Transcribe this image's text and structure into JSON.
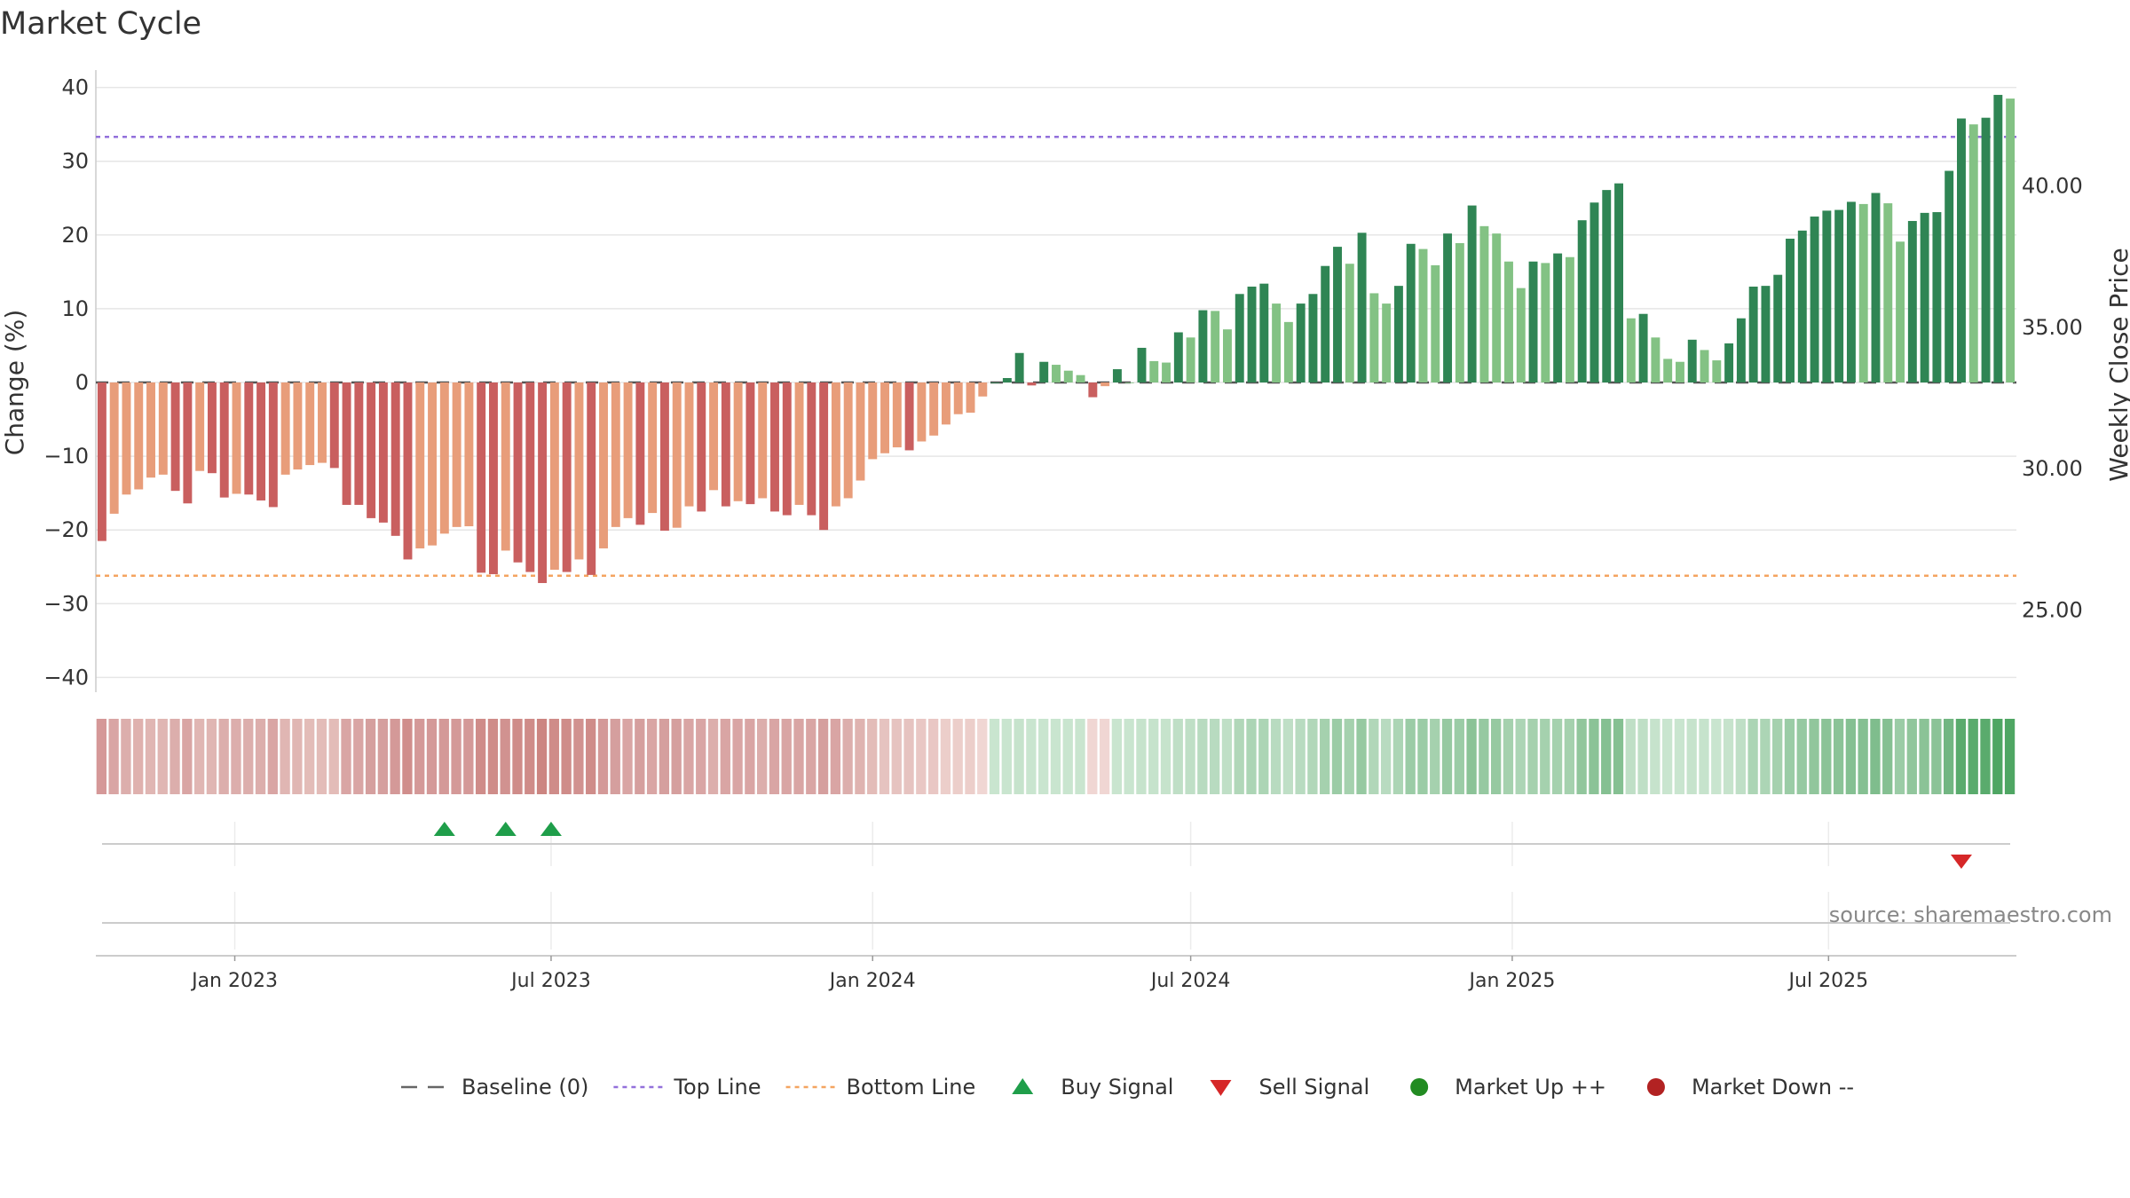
{
  "chart_data": {
    "type": "bar",
    "title": "Market Cycle",
    "ylabel_left": "Change (%)",
    "ylabel_right": "Weekly Close Price",
    "ylim": [
      -42,
      42
    ],
    "yticks": [
      40,
      30,
      20,
      10,
      0,
      -10,
      -20,
      -30,
      -40
    ],
    "right_ylim": [
      22.1,
      44.0
    ],
    "right_ticks": [
      "40.00",
      "35.00",
      "30.00",
      "25.00"
    ],
    "right_tick_values": [
      40,
      35,
      30,
      25
    ],
    "x_start": "2022-10-17",
    "week_days": 7,
    "xticks": [
      {
        "label": "Jan 2023",
        "date": "2023-01-01"
      },
      {
        "label": "Jul 2023",
        "date": "2023-07-01"
      },
      {
        "label": "Jan 2024",
        "date": "2024-01-01"
      },
      {
        "label": "Jul 2024",
        "date": "2024-07-01"
      },
      {
        "label": "Jan 2025",
        "date": "2025-01-01"
      },
      {
        "label": "Jul 2025",
        "date": "2025-07-01"
      }
    ],
    "top_line": 33.3,
    "bottom_line": -26.2,
    "values": [
      -21.5,
      -17.8,
      -15.2,
      -14.5,
      -12.9,
      -12.5,
      -14.7,
      -16.4,
      -12.0,
      -12.3,
      -15.6,
      -15.1,
      -15.2,
      -16.0,
      -16.9,
      -12.5,
      -11.8,
      -11.2,
      -10.9,
      -11.6,
      -16.6,
      -16.6,
      -18.4,
      -19.0,
      -20.8,
      -24.0,
      -22.5,
      -22.1,
      -20.5,
      -19.6,
      -19.5,
      -25.8,
      -26.0,
      -22.8,
      -24.4,
      -25.7,
      -27.2,
      -25.4,
      -25.7,
      -24.0,
      -26.1,
      -22.5,
      -19.6,
      -18.4,
      -19.3,
      -17.7,
      -20.1,
      -19.7,
      -16.8,
      -17.5,
      -14.6,
      -16.8,
      -16.1,
      -16.5,
      -15.7,
      -17.5,
      -18.0,
      -16.6,
      -18.0,
      -20.0,
      -16.8,
      -15.7,
      -13.3,
      -10.4,
      -9.6,
      -8.8,
      -9.2,
      -8.0,
      -7.2,
      -5.7,
      -4.3,
      -4.1,
      -1.9,
      0.0,
      0.6,
      4.0,
      -0.4,
      2.8,
      2.4,
      1.6,
      1.0,
      -2.0,
      -0.5,
      1.8,
      0.0,
      4.7,
      2.9,
      2.7,
      6.8,
      6.1,
      9.8,
      9.7,
      7.2,
      12.0,
      13.0,
      13.4,
      10.7,
      8.2,
      10.7,
      12.0,
      15.8,
      18.4,
      16.1,
      20.3,
      12.1,
      10.7,
      13.1,
      18.8,
      18.1,
      15.9,
      20.2,
      18.9,
      24.0,
      21.2,
      20.2,
      16.4,
      12.8,
      16.4,
      16.2,
      17.5,
      17.0,
      22.0,
      24.4,
      26.1,
      27.0,
      8.7,
      9.3,
      6.1,
      3.2,
      2.8,
      5.8,
      4.4,
      3.0,
      5.3,
      8.7,
      13.0,
      13.1,
      14.6,
      19.5,
      20.6,
      22.5,
      23.3,
      23.4,
      24.5,
      24.2,
      25.7,
      24.3,
      19.1,
      21.9,
      23.0,
      23.1,
      28.7,
      35.8,
      35.0,
      35.9,
      39.0,
      38.5
    ],
    "heat_colors": [
      "#d59898",
      "#d9a5a4",
      "#dcaeac",
      "#dfb1ae",
      "#e0b6b3",
      "#e0b6b3",
      "#dcaeac",
      "#d9a5a4",
      "#e0b6b3",
      "#e0b6b3",
      "#dcaeac",
      "#dcaeac",
      "#dcaeac",
      "#dcaeac",
      "#d9a5a4",
      "#e0b6b3",
      "#e0b6b3",
      "#e3bcb8",
      "#e3bcb8",
      "#e3bcb8",
      "#d9a5a4",
      "#d9a5a4",
      "#d59f9e",
      "#d59f9e",
      "#d49998",
      "#d08e8c",
      "#d49998",
      "#d49998",
      "#d49998",
      "#d49998",
      "#d49998",
      "#cf8c89",
      "#cf8c89",
      "#d19290",
      "#cf8c89",
      "#cf8c89",
      "#cc8581",
      "#cf8c89",
      "#cf8c89",
      "#d19290",
      "#cf8c89",
      "#d49998",
      "#d59f9e",
      "#d9a5a4",
      "#d59f9e",
      "#d9a5a4",
      "#d59f9e",
      "#d59f9e",
      "#d9a5a4",
      "#d9a5a4",
      "#dcaeac",
      "#d9a5a4",
      "#d9a5a4",
      "#d9a5a4",
      "#dcaeac",
      "#d9a5a4",
      "#d9a5a4",
      "#d9a5a4",
      "#d9a5a4",
      "#d59f9e",
      "#d9a5a4",
      "#dcaeac",
      "#dfb3b0",
      "#e3bcb8",
      "#e6c3c0",
      "#e6c3c0",
      "#e6c3c0",
      "#e9c7c4",
      "#e9c7c4",
      "#ecceca",
      "#ecceca",
      "#ecceca",
      "#f0d6d3",
      "#c9e5cf",
      "#c9e5cf",
      "#c6e3cc",
      "#c9e5cf",
      "#c9e5cf",
      "#c9e5cf",
      "#c9e5cf",
      "#c9e5cf",
      "#f0d6d3",
      "#f0d6d3",
      "#c9e5cf",
      "#c9e5cf",
      "#c6e3cc",
      "#c6e3cc",
      "#c6e3cc",
      "#bfdfc6",
      "#bfdfc6",
      "#b8dbc0",
      "#b8dbc0",
      "#bfdfc6",
      "#b1d7b9",
      "#acd5b5",
      "#acd5b5",
      "#b8dbc0",
      "#bfdfc6",
      "#b8dbc0",
      "#b1d7b9",
      "#a5d1ae",
      "#9bcca6",
      "#a5d1ae",
      "#96c9a1",
      "#b1d7b9",
      "#b8dbc0",
      "#acd5b5",
      "#9bcca6",
      "#9bcca6",
      "#a5d1ae",
      "#96c9a1",
      "#9bcca6",
      "#8bc397",
      "#96c9a1",
      "#96c9a1",
      "#a5d1ae",
      "#acd5b5",
      "#a5d1ae",
      "#a5d1ae",
      "#a5d1ae",
      "#a5d1ae",
      "#91c69c",
      "#8bc397",
      "#85c092",
      "#85c092",
      "#bfdfc6",
      "#bfdfc6",
      "#c6e3cc",
      "#c9e5cf",
      "#c9e5cf",
      "#c6e3cc",
      "#c6e3cc",
      "#c9e5cf",
      "#c6e3cc",
      "#bfdfc6",
      "#acd5b5",
      "#acd5b5",
      "#a5d1ae",
      "#9bcca6",
      "#96c9a1",
      "#91c69c",
      "#8bc397",
      "#8bc397",
      "#85c092",
      "#85c092",
      "#7fbd8d",
      "#85c092",
      "#9bcca6",
      "#91c69c",
      "#8bc397",
      "#8bc397",
      "#72b682",
      "#5aab6d",
      "#5aab6d",
      "#5aab6d",
      "#4fa663",
      "#4fa663"
    ],
    "bar_color_neg_dark": "#c95f5f",
    "bar_color_neg_light": "#e89d7a",
    "bar_color_pos_dark": "#2f8554",
    "bar_color_pos_light": "#83c284",
    "buy_signals": [
      "2023-05-01",
      "2023-06-05",
      "2023-07-01"
    ],
    "sell_signals": [
      "2025-09-15"
    ],
    "buy_color": "#1f9e4a",
    "sell_color": "#d62728",
    "legend": [
      {
        "label": "Baseline (0)",
        "kind": "dash",
        "color": "#666666"
      },
      {
        "label": "Top Line",
        "kind": "dot",
        "color": "#9370db"
      },
      {
        "label": "Bottom Line",
        "kind": "dot",
        "color": "#f4a460"
      },
      {
        "label": "Buy Signal",
        "kind": "tri-up",
        "color": "#1f9e4a"
      },
      {
        "label": "Sell Signal",
        "kind": "tri-down",
        "color": "#d62728"
      },
      {
        "label": "Market Up ++",
        "kind": "circle",
        "color": "#228b22"
      },
      {
        "label": "Market Down --",
        "kind": "circle",
        "color": "#b22222"
      }
    ],
    "legend_placement": "bottom",
    "grid": true,
    "source_text": "source: sharemaestro.com"
  }
}
